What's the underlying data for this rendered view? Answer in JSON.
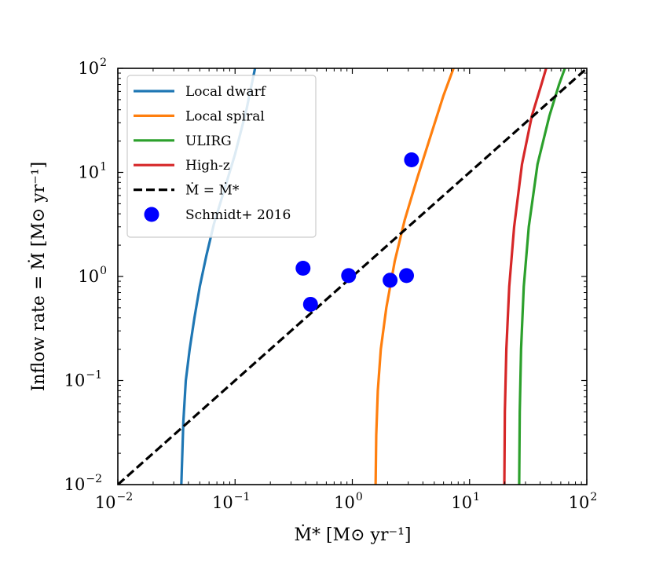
{
  "chart_data": {
    "type": "line",
    "xscale": "log",
    "yscale": "log",
    "xlim": [
      0.01,
      100
    ],
    "ylim": [
      0.01,
      100
    ],
    "xlabel": "Ṁ* [M⊙ yr⁻¹]",
    "ylabel": "Inflow rate = Ṁ [M⊙ yr⁻¹]",
    "xticks": [
      {
        "value": 0.01,
        "base": "10",
        "exp": "−2"
      },
      {
        "value": 0.1,
        "base": "10",
        "exp": "−1"
      },
      {
        "value": 1,
        "base": "10",
        "exp": "0"
      },
      {
        "value": 10,
        "base": "10",
        "exp": "1"
      },
      {
        "value": 100,
        "base": "10",
        "exp": "2"
      }
    ],
    "yticks": [
      {
        "value": 0.01,
        "base": "10",
        "exp": "−2"
      },
      {
        "value": 0.1,
        "base": "10",
        "exp": "−1"
      },
      {
        "value": 1,
        "base": "10",
        "exp": "0"
      },
      {
        "value": 10,
        "base": "10",
        "exp": "1"
      },
      {
        "value": 100,
        "base": "10",
        "exp": "2"
      }
    ],
    "series": [
      {
        "name": "Local dwarf",
        "color": "#1f77b4",
        "style": "solid",
        "points": [
          [
            0.0348,
            0.01
          ],
          [
            0.0355,
            0.02
          ],
          [
            0.0362,
            0.04
          ],
          [
            0.038,
            0.1
          ],
          [
            0.041,
            0.2
          ],
          [
            0.045,
            0.4
          ],
          [
            0.05,
            0.8
          ],
          [
            0.057,
            1.6
          ],
          [
            0.066,
            3.2
          ],
          [
            0.08,
            6.5
          ],
          [
            0.1,
            15
          ],
          [
            0.125,
            40
          ],
          [
            0.148,
            100
          ]
        ]
      },
      {
        "name": "Local spiral",
        "color": "#ff7f0e",
        "style": "solid",
        "points": [
          [
            1.58,
            0.01
          ],
          [
            1.6,
            0.03
          ],
          [
            1.65,
            0.08
          ],
          [
            1.75,
            0.2
          ],
          [
            1.95,
            0.5
          ],
          [
            2.3,
            1.4
          ],
          [
            2.8,
            3.5
          ],
          [
            3.6,
            9
          ],
          [
            4.8,
            25
          ],
          [
            6,
            55
          ],
          [
            7.3,
            100
          ]
        ]
      },
      {
        "name": "ULIRG",
        "color": "#2ca02c",
        "style": "solid",
        "points": [
          [
            26.5,
            0.01
          ],
          [
            26.8,
            0.05
          ],
          [
            27.5,
            0.2
          ],
          [
            29,
            0.8
          ],
          [
            32,
            3
          ],
          [
            38,
            12
          ],
          [
            48,
            35
          ],
          [
            58,
            70
          ],
          [
            65,
            100
          ]
        ]
      },
      {
        "name": "High-z",
        "color": "#d62728",
        "style": "solid",
        "points": [
          [
            19.8,
            0.01
          ],
          [
            20,
            0.05
          ],
          [
            20.6,
            0.2
          ],
          [
            21.8,
            0.8
          ],
          [
            24,
            3
          ],
          [
            28,
            12
          ],
          [
            34,
            35
          ],
          [
            41,
            70
          ],
          [
            45,
            100
          ]
        ]
      },
      {
        "name": "Ṁ = Ṁ*",
        "color": "#000000",
        "style": "dashed",
        "points": [
          [
            0.01,
            0.01
          ],
          [
            100,
            100
          ]
        ]
      }
    ],
    "scatter": {
      "name": "Schmidt+ 2016",
      "color": "#0000ff",
      "points": [
        [
          0.38,
          1.2
        ],
        [
          0.44,
          0.54
        ],
        [
          0.93,
          1.02
        ],
        [
          2.1,
          0.92
        ],
        [
          2.9,
          1.02
        ],
        [
          3.2,
          13.2
        ]
      ]
    },
    "legend": {
      "placement": "top-left",
      "entries": [
        {
          "label": "Local dwarf",
          "marker": "line",
          "color": "#1f77b4",
          "style": "solid"
        },
        {
          "label": "Local spiral",
          "marker": "line",
          "color": "#ff7f0e",
          "style": "solid"
        },
        {
          "label": "ULIRG",
          "marker": "line",
          "color": "#2ca02c",
          "style": "solid"
        },
        {
          "label": "High-z",
          "marker": "line",
          "color": "#d62728",
          "style": "solid"
        },
        {
          "label": "Ṁ = Ṁ*",
          "marker": "line",
          "color": "#000000",
          "style": "dashed"
        },
        {
          "label": "Schmidt+ 2016",
          "marker": "dot",
          "color": "#0000ff",
          "style": "none"
        }
      ]
    }
  }
}
